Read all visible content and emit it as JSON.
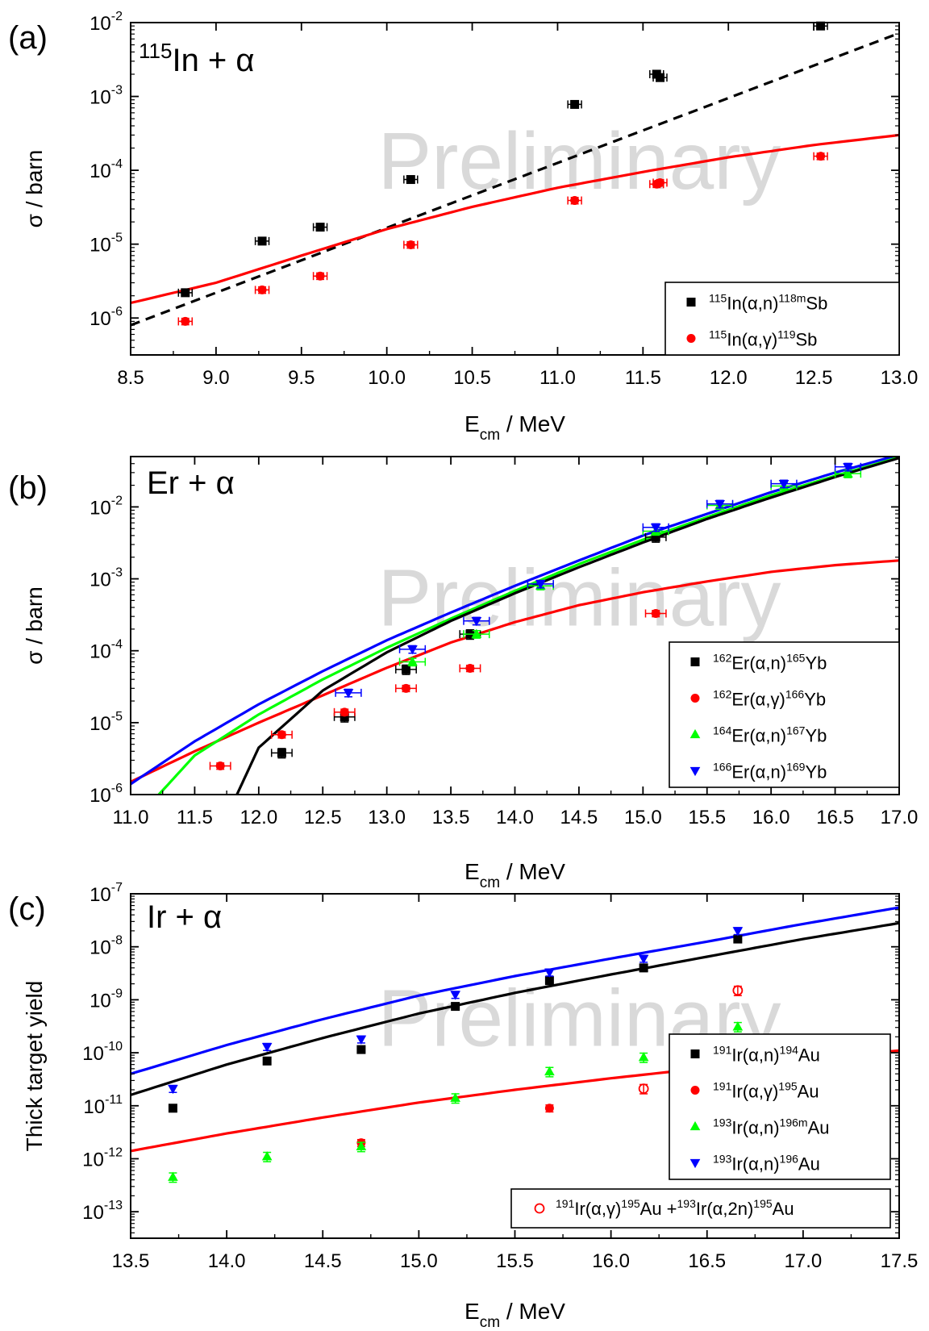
{
  "panels": [
    {
      "letter": "(a)",
      "title": "115In + α",
      "ylabel": "σ / barn",
      "xlabel": "E_cm / MeV",
      "watermark": "Preliminary",
      "chart_data": {
        "type": "scatter",
        "xlim": [
          8.5,
          13.0
        ],
        "ylim_log10": [
          -6.5,
          -2
        ],
        "y_scale": "log",
        "xticks": [
          "8.5",
          "9.0",
          "9.5",
          "10.0",
          "10.5",
          "11.0",
          "11.5",
          "12.0",
          "12.5",
          "13.0"
        ],
        "yticks": [
          {
            "exp": -6,
            "label": "10-6"
          },
          {
            "exp": -5,
            "label": "10-5"
          },
          {
            "exp": -4,
            "label": "10-4"
          },
          {
            "exp": -3,
            "label": "10-3"
          },
          {
            "exp": -2,
            "label": "10-2"
          }
        ],
        "legend_position": "bottom-right",
        "series": [
          {
            "name": "115In(α,n)118mSb",
            "color": "#000000",
            "marker": "square",
            "x": [
              8.82,
              9.27,
              9.61,
              10.14,
              11.1,
              11.58,
              11.6,
              12.54
            ],
            "y": [
              2.2e-06,
              1.1e-05,
              1.7e-05,
              7.5e-05,
              0.00078,
              0.002,
              0.0018,
              0.009
            ],
            "xerr": 0.04,
            "yerr_rel": 0.1
          },
          {
            "name": "115In(α,γ)119Sb",
            "color": "#ff0000",
            "marker": "circle",
            "x": [
              8.82,
              9.27,
              9.61,
              10.14,
              11.1,
              11.58,
              11.6,
              12.54
            ],
            "y": [
              9e-07,
              2.4e-06,
              3.7e-06,
              9.8e-06,
              3.9e-05,
              6.5e-05,
              6.8e-05,
              0.000155
            ],
            "xerr": 0.04,
            "yerr_rel": 0.1
          }
        ],
        "curves": [
          {
            "color": "#000000",
            "dashed": true,
            "x": [
              8.5,
              13.0
            ],
            "y": [
              8e-07,
              0.0072
            ]
          },
          {
            "color": "#ff0000",
            "dashed": false,
            "x": [
              8.5,
              9.0,
              9.5,
              10.0,
              10.5,
              11.0,
              11.5,
              12.0,
              12.5,
              13.0
            ],
            "y": [
              1.6e-06,
              3e-06,
              7e-06,
              1.6e-05,
              3.2e-05,
              5.8e-05,
              9.5e-05,
              0.00015,
              0.00022,
              0.0003
            ]
          }
        ]
      }
    },
    {
      "letter": "(b)",
      "title": "Er + α",
      "ylabel": "σ / barn",
      "xlabel": "E_cm / MeV",
      "watermark": "Preliminary",
      "chart_data": {
        "type": "scatter",
        "xlim": [
          11.0,
          17.0
        ],
        "ylim_log10": [
          -6,
          -1.3
        ],
        "y_scale": "log",
        "xticks": [
          "11.0",
          "11.5",
          "12.0",
          "12.5",
          "13.0",
          "13.5",
          "14.0",
          "14.5",
          "15.0",
          "15.5",
          "16.0",
          "16.5",
          "17.0"
        ],
        "yticks": [
          {
            "exp": -6,
            "label": "10-6"
          },
          {
            "exp": -5,
            "label": "10-5"
          },
          {
            "exp": -4,
            "label": "10-4"
          },
          {
            "exp": -3,
            "label": "10-3"
          },
          {
            "exp": -2,
            "label": "10-2"
          }
        ],
        "legend_position": "right",
        "series": [
          {
            "name": "162Er(α,n)165Yb",
            "color": "#000000",
            "marker": "square",
            "x": [
              12.18,
              12.67,
              13.15,
              13.65,
              15.1
            ],
            "y": [
              3.8e-06,
              1.2e-05,
              5.5e-05,
              0.00017,
              0.0038
            ],
            "xerr": 0.08,
            "yerr_rel": 0.15
          },
          {
            "name": "162Er(α,γ)166Yb",
            "color": "#ff0000",
            "marker": "circle",
            "x": [
              11.7,
              12.18,
              12.67,
              13.15,
              13.65,
              15.1
            ],
            "y": [
              2.5e-06,
              6.8e-06,
              1.4e-05,
              3e-05,
              5.7e-05,
              0.00033
            ],
            "xerr": 0.08,
            "yerr_rel": 0.1
          },
          {
            "name": "164Er(α,n)167Yb",
            "color": "#00ff00",
            "marker": "triangle-up",
            "x": [
              13.2,
              13.7,
              14.2,
              15.1,
              15.6,
              16.1,
              16.6
            ],
            "y": [
              7e-05,
              0.00017,
              0.0008,
              0.0046,
              0.0105,
              0.0195,
              0.029
            ],
            "xerr": 0.1,
            "yerr_rel": 0.12
          },
          {
            "name": "166Er(α,n)169Yb",
            "color": "#0000ff",
            "marker": "triangle-down",
            "x": [
              12.7,
              13.2,
              13.7,
              14.2,
              15.1,
              15.6,
              16.1,
              16.6
            ],
            "y": [
              2.6e-05,
              0.000105,
              0.00026,
              0.00085,
              0.0052,
              0.011,
              0.021,
              0.036
            ],
            "xerr": 0.1,
            "yerr_rel": 0.12
          }
        ],
        "curves": [
          {
            "color": "#ff0000",
            "dashed": false,
            "x": [
              11.0,
              11.5,
              12.0,
              12.5,
              13.0,
              13.5,
              14.0,
              14.5,
              15.0,
              15.5,
              16.0,
              16.5,
              17.0
            ],
            "y": [
              1.5e-06,
              4e-06,
              1e-05,
              2.4e-05,
              5.8e-05,
              0.00013,
              0.00025,
              0.00043,
              0.00065,
              0.00092,
              0.00125,
              0.00155,
              0.0018
            ]
          },
          {
            "color": "#0000ff",
            "dashed": false,
            "x": [
              11.0,
              11.5,
              12.0,
              12.5,
              13.0,
              13.5,
              14.0,
              14.5,
              15.0,
              15.5,
              16.0,
              16.5,
              17.0
            ],
            "y": [
              1.4e-06,
              5.5e-06,
              1.8e-05,
              5.2e-05,
              0.00014,
              0.00034,
              0.0008,
              0.0018,
              0.004,
              0.008,
              0.016,
              0.03,
              0.053
            ]
          },
          {
            "color": "#00ff00",
            "dashed": false,
            "x": [
              11.22,
              11.5,
              12.0,
              12.5,
              13.0,
              13.5,
              14.0,
              14.5,
              15.0,
              15.5,
              16.0,
              16.5,
              17.0
            ],
            "y": [
              1e-06,
              3.5e-06,
              1.3e-05,
              4e-05,
              0.00011,
              0.00028,
              0.00068,
              0.0016,
              0.0035,
              0.0072,
              0.0145,
              0.027,
              0.049
            ]
          },
          {
            "color": "#000000",
            "dashed": false,
            "x": [
              11.83,
              12.0,
              12.5,
              13.0,
              13.5,
              14.0,
              14.5,
              15.0,
              15.5,
              16.0,
              16.5,
              17.0
            ],
            "y": [
              1e-06,
              4.5e-06,
              2.8e-05,
              9.5e-05,
              0.00026,
              0.00063,
              0.00145,
              0.0032,
              0.0068,
              0.0135,
              0.026,
              0.048
            ]
          }
        ]
      }
    },
    {
      "letter": "(c)",
      "title": "Ir + α",
      "ylabel": "Thick target yield",
      "xlabel": "E_cm / MeV",
      "watermark": "Preliminary",
      "chart_data": {
        "type": "scatter",
        "xlim": [
          13.5,
          17.5
        ],
        "ylim_log10": [
          -13.5,
          -7
        ],
        "y_scale": "log",
        "xticks": [
          "13.5",
          "14.0",
          "14.5",
          "15.0",
          "15.5",
          "16.0",
          "16.5",
          "17.0",
          "17.5"
        ],
        "yticks": [
          {
            "exp": -13,
            "label": "10-13"
          },
          {
            "exp": -12,
            "label": "10-12"
          },
          {
            "exp": -11,
            "label": "10-11"
          },
          {
            "exp": -10,
            "label": "10-10"
          },
          {
            "exp": -9,
            "label": "10-9"
          },
          {
            "exp": -8,
            "label": "10-8"
          },
          {
            "exp": -7,
            "label": "10-7"
          }
        ],
        "legend_position": "right",
        "legend2_text": "191Ir(α,γ)195Au +193Ir(α,2n)195Au",
        "series": [
          {
            "name": "191Ir(α,n)194Au",
            "color": "#000000",
            "marker": "square",
            "x": [
              13.72,
              14.21,
              14.7,
              15.19,
              15.68,
              16.17,
              16.66
            ],
            "y": [
              9e-12,
              7e-11,
              1.15e-10,
              7.5e-10,
              2.3e-09,
              4e-09,
              1.4e-08
            ],
            "xerr": 0,
            "yerr_rel": 0.15
          },
          {
            "name": "191Ir(α,γ)195Au",
            "color": "#ff0000",
            "marker": "circle",
            "x": [
              14.7,
              15.68
            ],
            "y": [
              2e-12,
              9e-12
            ],
            "xerr": 0,
            "yerr_rel": 0.15
          },
          {
            "name": "193Ir(α,n)196mAu",
            "color": "#00ff00",
            "marker": "triangle-up",
            "x": [
              13.72,
              14.21,
              14.7,
              15.19,
              15.68,
              16.17,
              16.66
            ],
            "y": [
              4.5e-13,
              1.1e-12,
              1.7e-12,
              1.4e-11,
              4.4e-11,
              8.2e-11,
              3.1e-10
            ],
            "xerr": 0,
            "yerr_rel": 0.2
          },
          {
            "name": "193Ir(α,n)196Au",
            "color": "#0000ff",
            "marker": "triangle-down",
            "x": [
              13.72,
              14.21,
              14.7,
              15.19,
              15.68,
              16.17,
              16.66
            ],
            "y": [
              2.1e-11,
              1.3e-10,
              1.8e-10,
              1.25e-09,
              3.3e-09,
              6e-09,
              2e-08
            ],
            "xerr": 0,
            "yerr_rel": 0.15
          },
          {
            "name": "191Ir(α,γ)195Au +193Ir(α,2n)195Au",
            "color": "#ff0000",
            "marker": "open-circle",
            "x": [
              16.17,
              16.66
            ],
            "y": [
              2.1e-11,
              1.5e-09
            ],
            "xerr": 0,
            "yerr_rel": 0.2
          }
        ],
        "curves": [
          {
            "color": "#0000ff",
            "dashed": false,
            "x": [
              13.5,
              14.0,
              14.5,
              15.0,
              15.5,
              16.0,
              16.5,
              17.0,
              17.5
            ],
            "y": [
              4e-11,
              1.4e-10,
              4.3e-10,
              1.2e-09,
              2.8e-09,
              6e-09,
              1.25e-08,
              2.7e-08,
              5.5e-08
            ]
          },
          {
            "color": "#000000",
            "dashed": false,
            "x": [
              13.5,
              14.0,
              14.5,
              15.0,
              15.5,
              16.0,
              16.5,
              17.0,
              17.5
            ],
            "y": [
              1.6e-11,
              6e-11,
              1.9e-10,
              5.5e-10,
              1.35e-09,
              3e-09,
              6.5e-09,
              1.4e-08,
              2.8e-08
            ]
          },
          {
            "color": "#ff0000",
            "dashed": false,
            "x": [
              13.5,
              14.0,
              14.5,
              15.0,
              15.5,
              16.0,
              16.5,
              17.0,
              17.5
            ],
            "y": [
              1.4e-12,
              3e-12,
              6e-12,
              1.15e-11,
              2e-11,
              3.3e-11,
              5.2e-11,
              7.8e-11,
              1.1e-10
            ]
          }
        ]
      }
    }
  ]
}
